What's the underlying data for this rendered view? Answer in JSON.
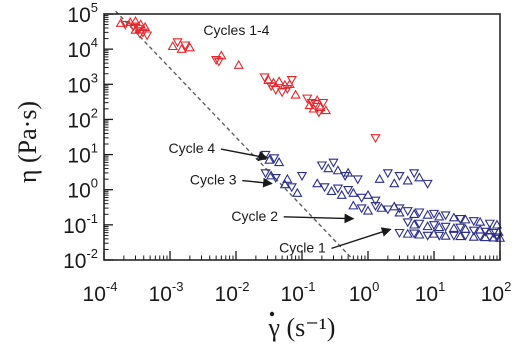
{
  "chart_data": {
    "type": "scatter",
    "xlabel": "γ (s⁻¹)",
    "ylabel": "η (Pa·s)",
    "x_scale": "log",
    "y_scale": "log",
    "xlim": [
      0.0001,
      100
    ],
    "ylim": [
      0.01,
      100000
    ],
    "x_ticks": [
      {
        "base": "10",
        "exp": "-4"
      },
      {
        "base": "10",
        "exp": "-3"
      },
      {
        "base": "10",
        "exp": "-2"
      },
      {
        "base": "10",
        "exp": "-1"
      },
      {
        "base": "10",
        "exp": "0"
      },
      {
        "base": "10",
        "exp": "1"
      },
      {
        "base": "10",
        "exp": "2"
      }
    ],
    "y_ticks": [
      {
        "base": "10",
        "exp": "5"
      },
      {
        "base": "10",
        "exp": "4"
      },
      {
        "base": "10",
        "exp": "3"
      },
      {
        "base": "10",
        "exp": "2"
      },
      {
        "base": "10",
        "exp": "1"
      },
      {
        "base": "10",
        "exp": "0"
      },
      {
        "base": "10",
        "exp": "-1"
      },
      {
        "base": "10",
        "exp": "-2"
      }
    ],
    "grid": false,
    "series": [
      {
        "color": "#e8252a",
        "marker": "triangle-mixed",
        "points": [
          [
            0.00018,
            55000
          ],
          [
            0.00021,
            50000
          ],
          [
            0.00025,
            58000
          ],
          [
            0.00028,
            45000
          ],
          [
            0.0003,
            62000
          ],
          [
            0.00033,
            38000
          ],
          [
            0.00036,
            50000
          ],
          [
            0.00039,
            30000
          ],
          [
            0.00042,
            42000
          ],
          [
            0.00045,
            25000
          ],
          [
            0.0003,
            35000
          ],
          [
            0.00035,
            28000
          ],
          [
            0.0011,
            12000
          ],
          [
            0.0013,
            16000
          ],
          [
            0.0015,
            10000
          ],
          [
            0.0017,
            13000
          ],
          [
            0.002,
            11000
          ],
          [
            0.005,
            5000
          ],
          [
            0.006,
            6500
          ],
          [
            0.0055,
            4500
          ],
          [
            0.011,
            3500
          ],
          [
            0.027,
            1600
          ],
          [
            0.031,
            1300
          ],
          [
            0.034,
            900
          ],
          [
            0.037,
            1100
          ],
          [
            0.04,
            700
          ],
          [
            0.045,
            1200
          ],
          [
            0.05,
            600
          ],
          [
            0.055,
            950
          ],
          [
            0.06,
            750
          ],
          [
            0.065,
            1000
          ],
          [
            0.07,
            1350
          ],
          [
            0.08,
            500
          ],
          [
            0.12,
            400
          ],
          [
            0.13,
            250
          ],
          [
            0.14,
            300
          ],
          [
            0.15,
            200
          ],
          [
            0.16,
            280
          ],
          [
            0.17,
            350
          ],
          [
            0.18,
            160
          ],
          [
            0.19,
            220
          ],
          [
            0.21,
            300
          ],
          [
            0.23,
            180
          ],
          [
            1.3,
            30
          ]
        ]
      },
      {
        "color": "#2b2f8c",
        "marker": "triangle-mixed",
        "points": [
          [
            0.024,
            9
          ],
          [
            0.028,
            10
          ],
          [
            0.032,
            7
          ],
          [
            0.038,
            8
          ],
          [
            0.045,
            6
          ],
          [
            0.028,
            3
          ],
          [
            0.034,
            2.5
          ],
          [
            0.04,
            2.2
          ],
          [
            0.06,
            2
          ],
          [
            0.1,
            2.5
          ],
          [
            0.055,
            1.4
          ],
          [
            0.07,
            1.2
          ],
          [
            0.085,
            0.8
          ],
          [
            0.2,
            5
          ],
          [
            0.25,
            4
          ],
          [
            0.3,
            6
          ],
          [
            0.35,
            3.5
          ],
          [
            0.45,
            2.5
          ],
          [
            0.5,
            3
          ],
          [
            0.7,
            2
          ],
          [
            0.17,
            1.5
          ],
          [
            0.22,
            1.2
          ],
          [
            0.28,
            0.9
          ],
          [
            0.35,
            1.1
          ],
          [
            0.4,
            0.7
          ],
          [
            0.5,
            1
          ],
          [
            0.6,
            0.8
          ],
          [
            0.8,
            0.6
          ],
          [
            1,
            0.7
          ],
          [
            1.3,
            0.5
          ],
          [
            0.6,
            0.35
          ],
          [
            0.8,
            0.3
          ],
          [
            1,
            0.25
          ],
          [
            1.3,
            0.35
          ],
          [
            1.6,
            0.3
          ],
          [
            2,
            0.28
          ],
          [
            2.5,
            0.33
          ],
          [
            3,
            0.3
          ],
          [
            1.5,
            2
          ],
          [
            2,
            3
          ],
          [
            2.5,
            1.5
          ],
          [
            3,
            2.5
          ],
          [
            4,
            1.8
          ],
          [
            5,
            3
          ],
          [
            6,
            2.2
          ],
          [
            8,
            1.5
          ],
          [
            3,
            0.22
          ],
          [
            4,
            0.25
          ],
          [
            5,
            0.2
          ],
          [
            6,
            0.23
          ],
          [
            8,
            0.19
          ],
          [
            10,
            0.21
          ],
          [
            12,
            0.17
          ],
          [
            15,
            0.19
          ],
          [
            20,
            0.16
          ],
          [
            25,
            0.15
          ],
          [
            30,
            0.14
          ],
          [
            40,
            0.13
          ],
          [
            50,
            0.12
          ],
          [
            70,
            0.11
          ],
          [
            90,
            0.1
          ],
          [
            4,
            0.12
          ],
          [
            5,
            0.1
          ],
          [
            6,
            0.11
          ],
          [
            8,
            0.09
          ],
          [
            10,
            0.1
          ],
          [
            12,
            0.085
          ],
          [
            15,
            0.09
          ],
          [
            20,
            0.08
          ],
          [
            25,
            0.085
          ],
          [
            30,
            0.075
          ],
          [
            40,
            0.07
          ],
          [
            50,
            0.072
          ],
          [
            60,
            0.065
          ],
          [
            70,
            0.068
          ],
          [
            80,
            0.06
          ],
          [
            95,
            0.062
          ],
          [
            3,
            0.06
          ],
          [
            4,
            0.055
          ],
          [
            5,
            0.058
          ],
          [
            6,
            0.052
          ],
          [
            8,
            0.05
          ],
          [
            10,
            0.055
          ],
          [
            12,
            0.05
          ],
          [
            15,
            0.048
          ],
          [
            20,
            0.05
          ],
          [
            25,
            0.047
          ],
          [
            30,
            0.05
          ],
          [
            40,
            0.045
          ],
          [
            50,
            0.048
          ],
          [
            60,
            0.044
          ],
          [
            70,
            0.046
          ],
          [
            80,
            0.043
          ],
          [
            90,
            0.045
          ],
          [
            100,
            0.042
          ]
        ]
      }
    ],
    "reference_line": {
      "style": "dashed",
      "color": "#606060",
      "points": [
        [
          0.00015,
          120000
        ],
        [
          0.6,
          0.01
        ]
      ]
    },
    "annotations": [
      {
        "text": "Cycles 1-4",
        "anchor": [
          0.0032,
          25000
        ],
        "arrow_to": null
      },
      {
        "text": "Cycle 4",
        "anchor": [
          0.00095,
          11
        ],
        "arrow_to": [
          0.03,
          8
        ]
      },
      {
        "text": "Cycle 3",
        "anchor": [
          0.002,
          1.4
        ],
        "arrow_to": [
          0.035,
          1.5
        ]
      },
      {
        "text": "Cycle 2",
        "anchor": [
          0.0085,
          0.13
        ],
        "arrow_to": [
          0.6,
          0.15
        ]
      },
      {
        "text": "Cycle 1",
        "anchor": [
          0.045,
          0.0165
        ],
        "arrow_to": [
          2.2,
          0.075
        ]
      }
    ]
  }
}
